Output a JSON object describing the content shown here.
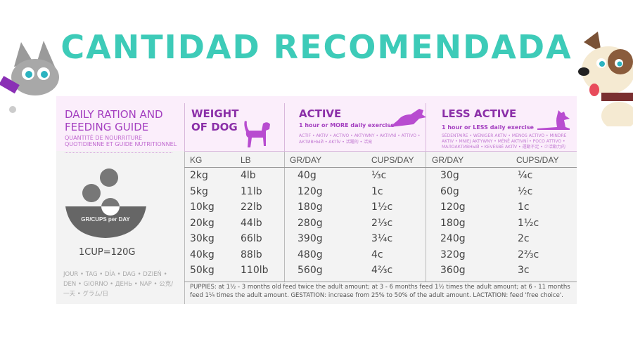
{
  "title": "CANTIDAD RECOMENDADA",
  "guide": {
    "title_line1": "DAILY RATION AND",
    "title_line2": "FEEDING GUIDE",
    "subtitle_line1": "QUANTITÉ DE NOURRITURE",
    "subtitle_line2": "QUOTIDIENNE ET GUIDE NUTRITIONNEL",
    "bowl_label": "GR/CUPS per DAY",
    "cup_equiv": "1CUP=120G",
    "day_translations": "JOUR • TAG • DÍA • DAG • DZIEŃ • DEN • GIORNO • ДЕНЬ • NAP • 公克/一天 • グラム/日"
  },
  "weight": {
    "title_line1": "WEIGHT",
    "title_line2": "OF DOG",
    "col_kg": "KG",
    "col_lb": "LB"
  },
  "active": {
    "title": "ACTIVE",
    "subtitle": "1 hour or MORE daily exercise",
    "translations": "ACTIF • AKTIV • ACTIVO • AKTYWNY • AKTIVNÍ • ATTIVO • АКТИВНЫЙ • AKTÍV • 活躍的 • 活発",
    "col_gr": "GR/DAY",
    "col_cups": "CUPS/DAY"
  },
  "less_active": {
    "title": "LESS ACTIVE",
    "subtitle": "1 hour or LESS daily exercise",
    "translations": "SÉDENTAIRE • WENIGER AKTIV • MENOS ACTIVO • MINDRE AKTIV • MNIEJ AKTYWNY • MÉNĚ AKTIVNÍ • POCO ATTIVO • МАЛОАКТИВНЫЙ • KEVÉSBÉ AKTÍV • 運動不足 • 少活動力的",
    "col_gr": "GR/DAY",
    "col_cups": "CUPS/DAY"
  },
  "rows": [
    {
      "kg": "2kg",
      "lb": "4lb",
      "a_gr": "40g",
      "a_cups": "⅓c",
      "l_gr": "30g",
      "l_cups": "¼c"
    },
    {
      "kg": "5kg",
      "lb": "11lb",
      "a_gr": "120g",
      "a_cups": "1c",
      "l_gr": "60g",
      "l_cups": "½c"
    },
    {
      "kg": "10kg",
      "lb": "22lb",
      "a_gr": "180g",
      "a_cups": "1½c",
      "l_gr": "120g",
      "l_cups": "1c"
    },
    {
      "kg": "20kg",
      "lb": "44lb",
      "a_gr": "280g",
      "a_cups": "2⅓c",
      "l_gr": "180g",
      "l_cups": "1½c"
    },
    {
      "kg": "30kg",
      "lb": "66lb",
      "a_gr": "390g",
      "a_cups": "3¼c",
      "l_gr": "240g",
      "l_cups": "2c"
    },
    {
      "kg": "40kg",
      "lb": "88lb",
      "a_gr": "480g",
      "a_cups": "4c",
      "l_gr": "320g",
      "l_cups": "2⅔c"
    },
    {
      "kg": "50kg",
      "lb": "110lb",
      "a_gr": "560g",
      "a_cups": "4⅔c",
      "l_gr": "360g",
      "l_cups": "3c"
    }
  ],
  "footnote": "PUPPIES: at 1½ - 3 months old feed twice the adult amount; at 3 - 6 months feed 1½ times the adult amount; at 6 - 11 months feed 1¼ times the adult amount. GESTATION: increase from 25% to 50% of the adult amount. LACTATION: feed 'free choice'.",
  "colors": {
    "title": "#3dcbb8",
    "accent": "#a43fc0",
    "header_bg": "#fbeefb",
    "card_bg": "#f3f3f3"
  },
  "icons": [
    "cat-mascot",
    "dog-mascot",
    "beagle-silhouette",
    "running-dog",
    "lying-dog",
    "food-bowl"
  ]
}
